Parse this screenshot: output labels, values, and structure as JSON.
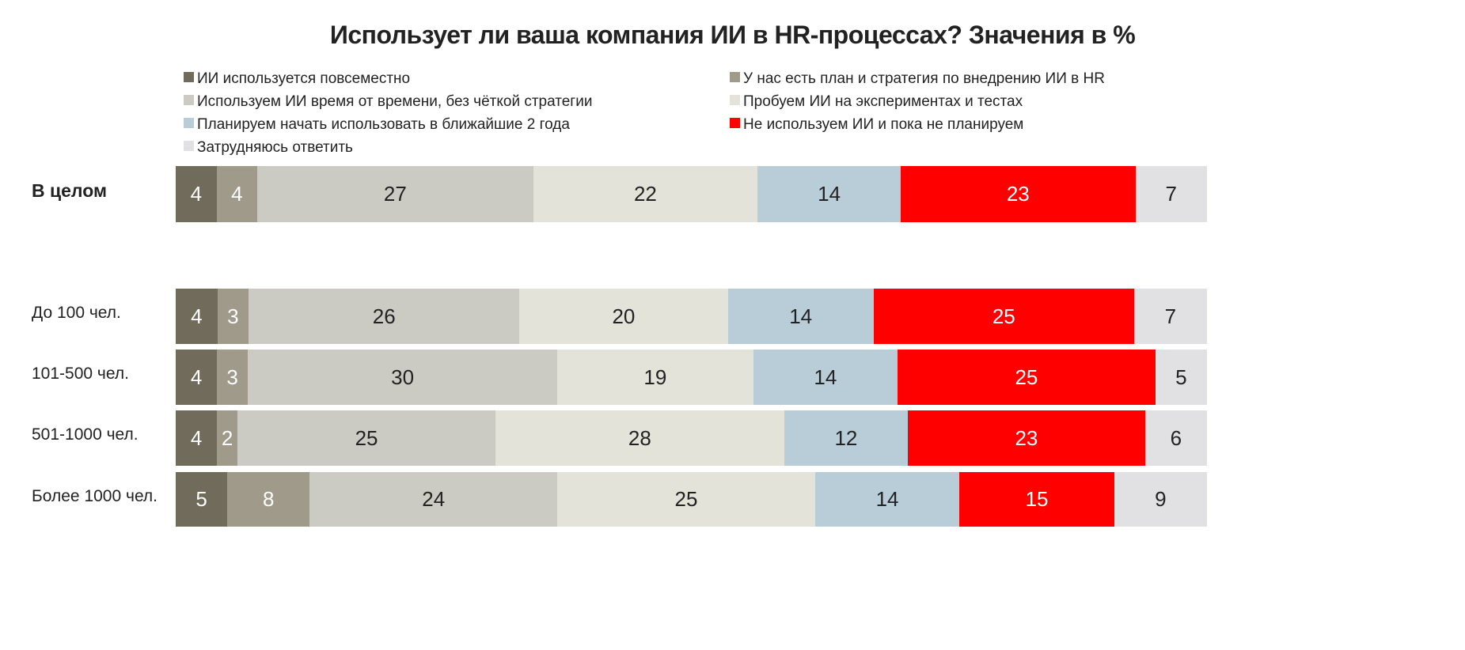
{
  "chart_data": {
    "type": "bar",
    "orientation": "horizontal",
    "stacked": true,
    "title": "Использует ли ваша компания ИИ в HR-процессах? Значения в %",
    "legend_placement": "top",
    "series": [
      {
        "name": "ИИ используется повсеместно",
        "color": "#716b5c",
        "label_color": "#ffffff"
      },
      {
        "name": "У нас есть план и стратегия по внедрению ИИ в HR",
        "color": "#a09a8a",
        "label_color": "#ffffff"
      },
      {
        "name": "Используем ИИ время от времени, без чёткой стратегии",
        "color": "#cccbc3",
        "label_color": "#222222"
      },
      {
        "name": "Пробуем ИИ на экспериментах и тестах",
        "color": "#e4e3da",
        "label_color": "#222222"
      },
      {
        "name": "Планируем начать использовать в ближайшие 2 года",
        "color": "#b9cdd9",
        "label_color": "#222222"
      },
      {
        "name": "Не используем ИИ и пока не планируем",
        "color": "#ff0000",
        "label_color": "#ffffff"
      },
      {
        "name": "Затрудняюсь ответить",
        "color": "#e1e1e3",
        "label_color": "#222222"
      }
    ],
    "categories": [
      {
        "label": "В целом",
        "bold": true,
        "values": [
          4,
          4,
          27,
          22,
          14,
          23,
          7
        ]
      },
      {
        "label": "До 100 чел.",
        "bold": false,
        "values": [
          4,
          3,
          26,
          20,
          14,
          25,
          7
        ]
      },
      {
        "label": "101-500 чел.",
        "bold": false,
        "values": [
          4,
          3,
          30,
          19,
          14,
          25,
          5
        ]
      },
      {
        "label": "501-1000 чел.",
        "bold": false,
        "values": [
          4,
          2,
          25,
          28,
          12,
          23,
          6
        ]
      },
      {
        "label": "Более 1000 чел.",
        "bold": false,
        "values": [
          5,
          8,
          24,
          25,
          14,
          15,
          9
        ]
      }
    ]
  }
}
